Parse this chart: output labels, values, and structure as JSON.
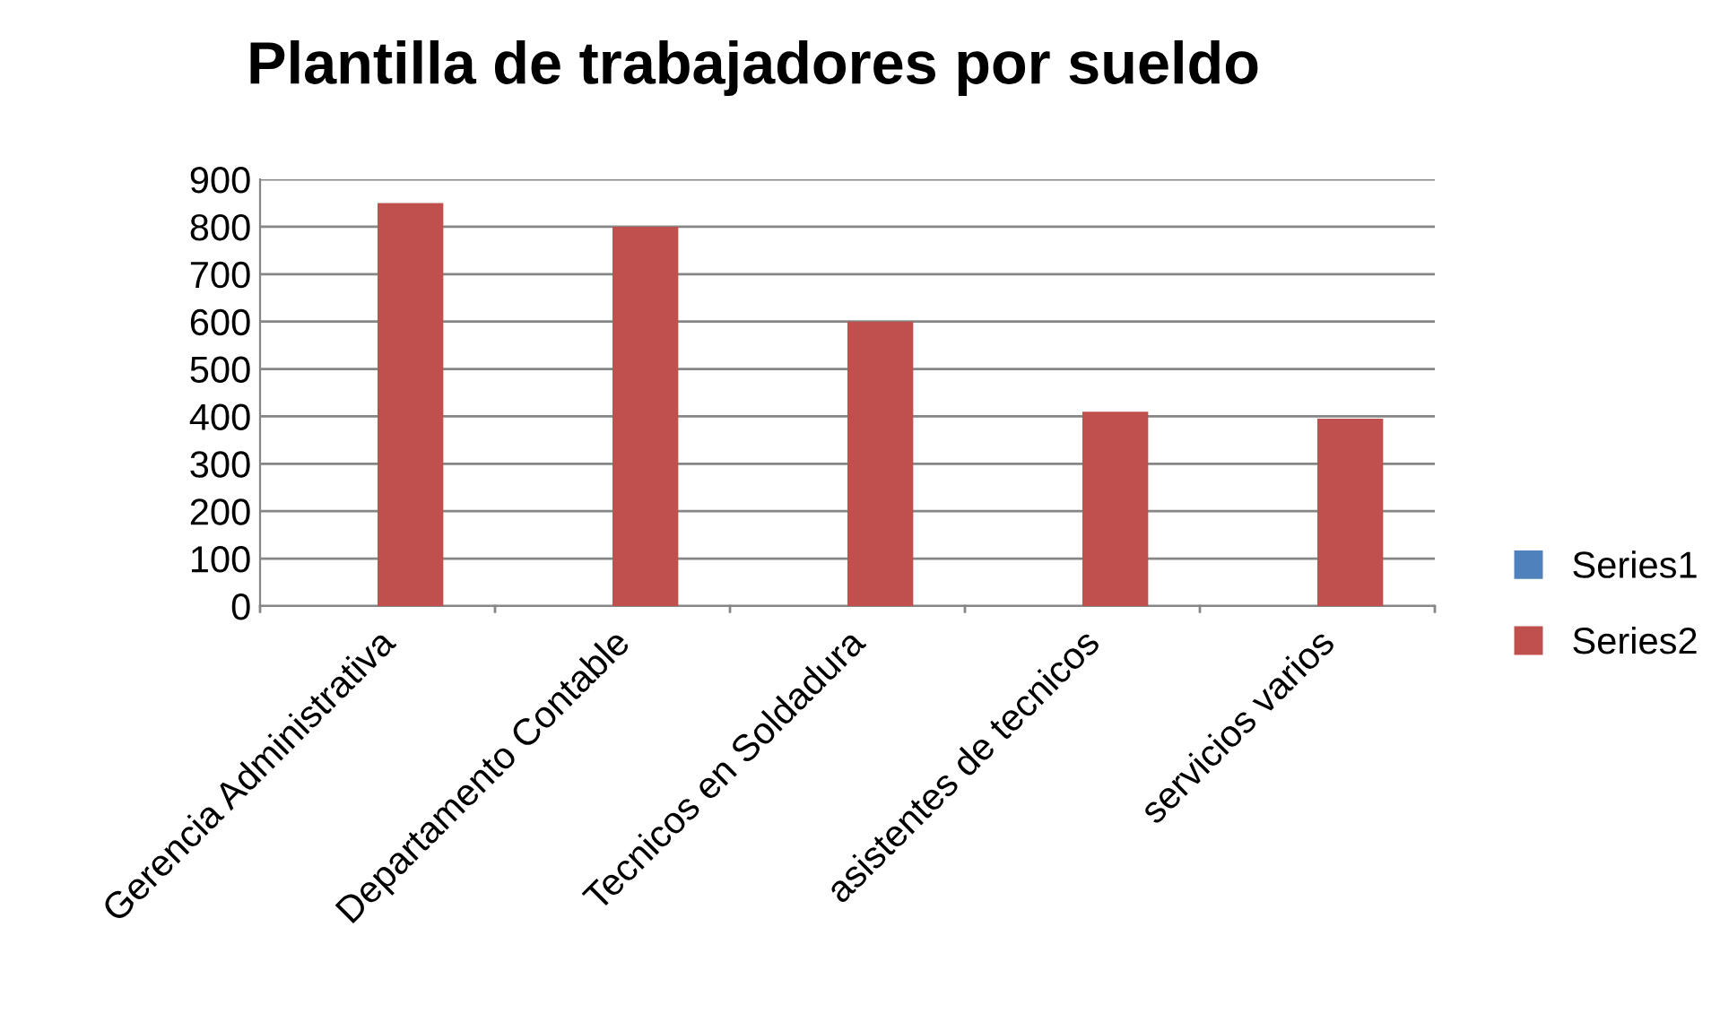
{
  "chart_data": {
    "type": "bar",
    "title": "Plantilla de trabajadores por sueldo",
    "categories": [
      "Gerencia Administrativa",
      "Departamento Contable",
      "Tecnicos en Soldadura",
      "asistentes de tecnicos",
      "servicios varios"
    ],
    "series": [
      {
        "name": "Series1",
        "color": "#4f81bd",
        "values": [
          null,
          null,
          null,
          null,
          null
        ]
      },
      {
        "name": "Series2",
        "color": "#c0504d",
        "values": [
          850,
          800,
          600,
          410,
          395
        ]
      }
    ],
    "ylim": [
      0,
      900
    ],
    "yticks": [
      0,
      100,
      200,
      300,
      400,
      500,
      600,
      700,
      800,
      900
    ],
    "grid": "y",
    "legend": "right"
  }
}
